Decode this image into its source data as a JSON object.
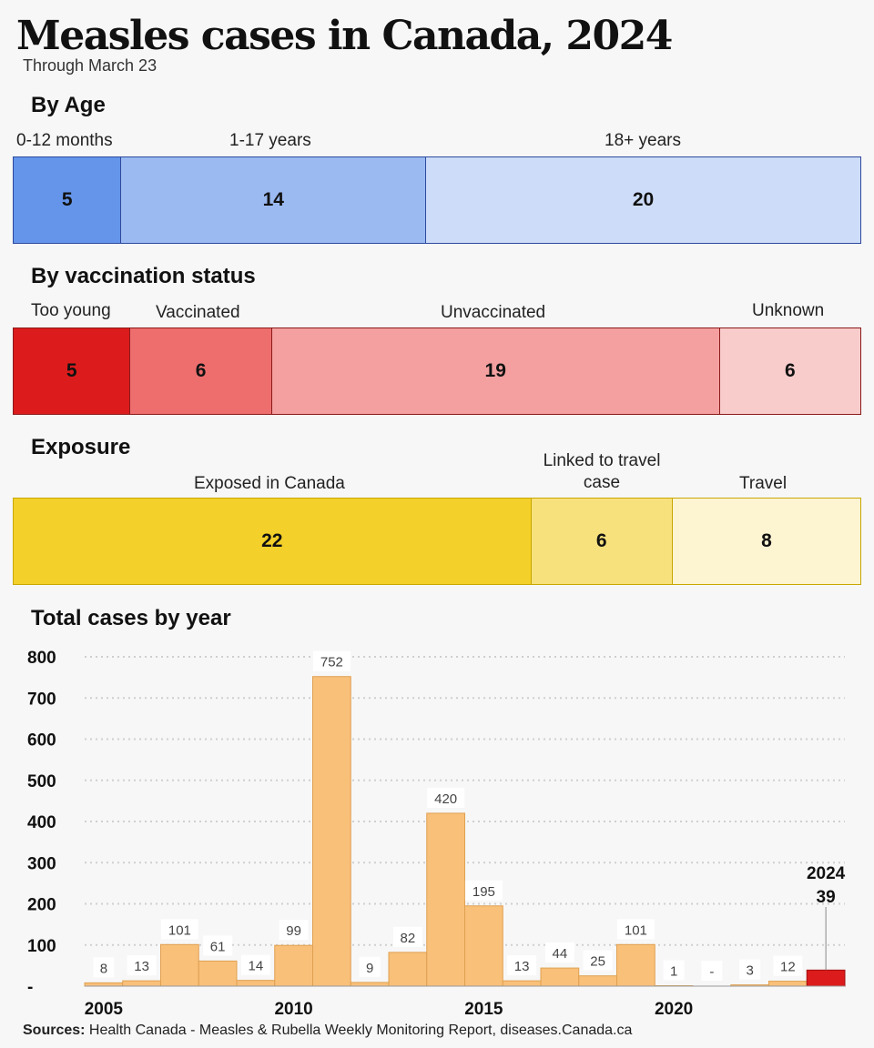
{
  "title": "Measles cases in Canada, 2024",
  "subtitle": "Through March 23",
  "sections": {
    "age": "By Age",
    "vaccination": "By vaccination status",
    "exposure": "Exposure",
    "year": "Total cases by year"
  },
  "sources_label": "Sources:",
  "sources_text": " Health Canada - Measles & Rubella Weekly Monitoring Report, diseases.Canada.ca",
  "chart_data": [
    {
      "type": "bar",
      "orientation": "stacked-horizontal",
      "title": "By Age",
      "categories": [
        "0-12 months",
        "1-17 years",
        "18+ years"
      ],
      "values": [
        5,
        14,
        20
      ],
      "colors": [
        "#6495ea",
        "#9bbaf1",
        "#cddcf8"
      ]
    },
    {
      "type": "bar",
      "orientation": "stacked-horizontal",
      "title": "By vaccination status",
      "categories": [
        "Too young",
        "Vaccinated",
        "Unvaccinated",
        "Unknown"
      ],
      "values": [
        5,
        6,
        19,
        6
      ],
      "colors": [
        "#dc1c1c",
        "#ee6e6e",
        "#f4a0a0",
        "#f9cccc"
      ]
    },
    {
      "type": "bar",
      "orientation": "stacked-horizontal",
      "title": "Exposure",
      "categories": [
        "Exposed in Canada",
        "Linked to travel case",
        "Travel"
      ],
      "values": [
        22,
        6,
        8
      ],
      "colors": [
        "#f4d02a",
        "#f7e17c",
        "#fdf4d2"
      ]
    },
    {
      "type": "bar",
      "title": "Total cases by year",
      "x": [
        2005,
        2006,
        2007,
        2008,
        2009,
        2010,
        2011,
        2012,
        2013,
        2014,
        2015,
        2016,
        2017,
        2018,
        2019,
        2020,
        2021,
        2022,
        2023,
        2024
      ],
      "values": [
        8,
        13,
        101,
        61,
        14,
        99,
        752,
        9,
        82,
        420,
        195,
        13,
        44,
        25,
        101,
        1,
        0,
        3,
        12,
        39
      ],
      "value_labels": [
        "8",
        "13",
        "101",
        "61",
        "14",
        "99",
        "752",
        "9",
        "82",
        "420",
        "195",
        "13",
        "44",
        "25",
        "101",
        "1",
        "-",
        "3",
        "12",
        "39"
      ],
      "highlight": {
        "year": "2024",
        "value": "39",
        "color": "#dc1c1c"
      },
      "bar_color": "#f9c07a",
      "yticks": [
        "-",
        "100",
        "200",
        "300",
        "400",
        "500",
        "600",
        "700",
        "800"
      ],
      "xticks": [
        "2005",
        "2010",
        "2015",
        "2020"
      ],
      "ylim": [
        0,
        800
      ],
      "grid": true
    }
  ]
}
